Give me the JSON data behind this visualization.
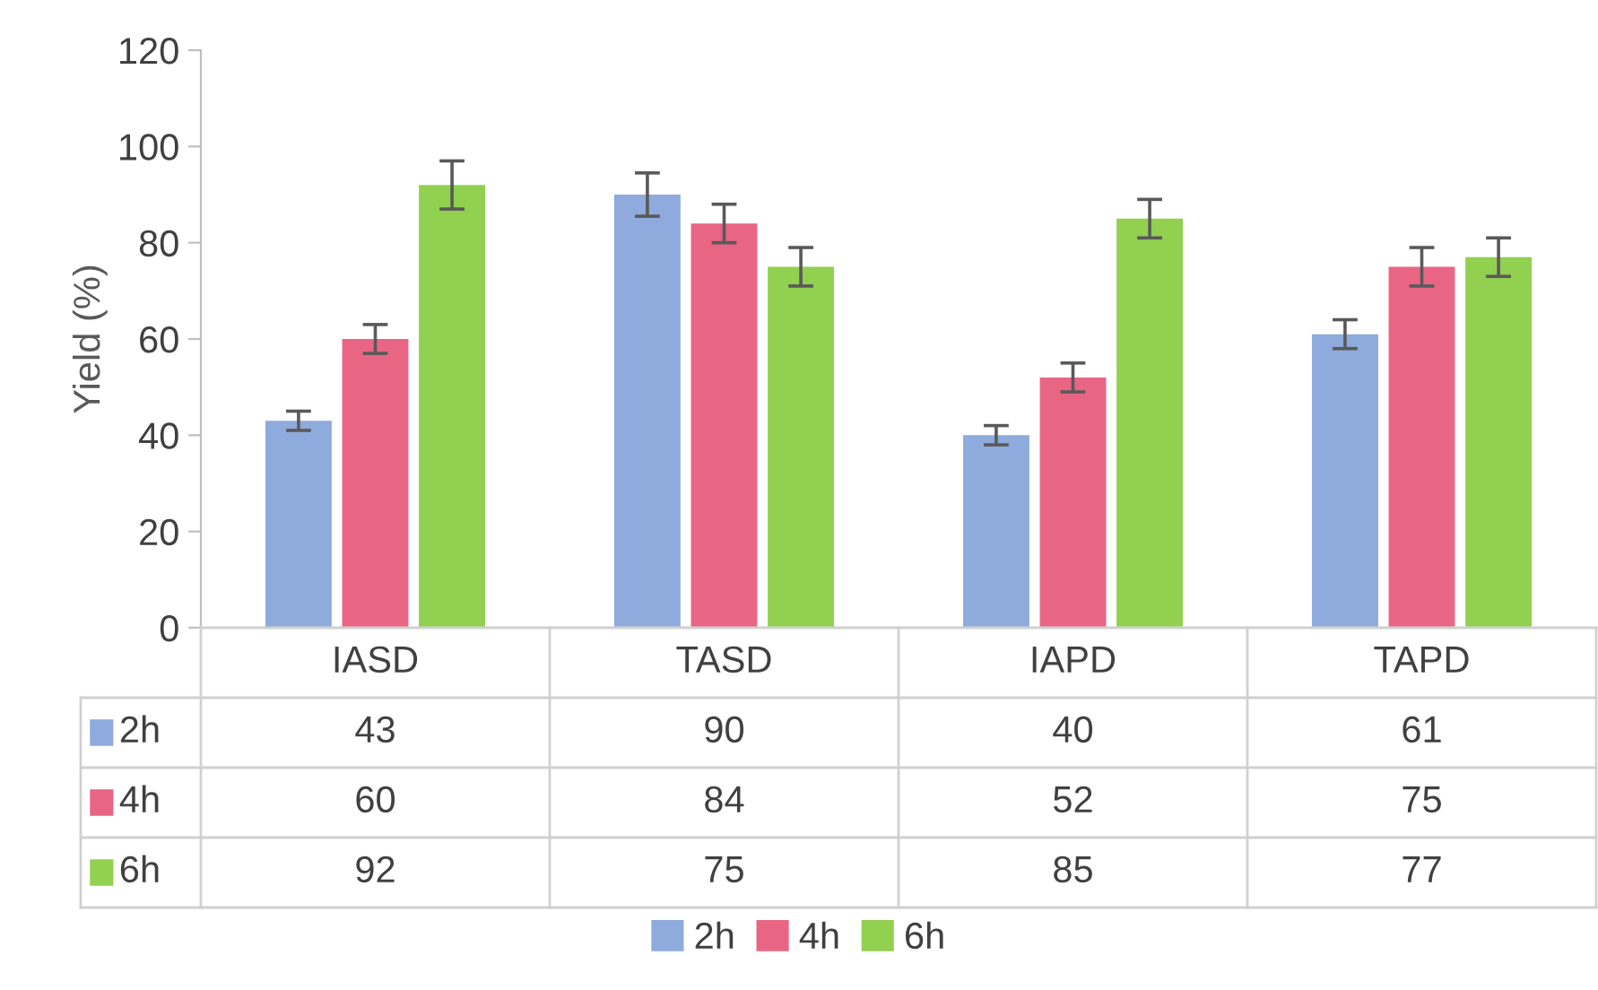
{
  "chart_data": {
    "type": "bar",
    "ylabel": "Yield (%)",
    "categories": [
      "IASD",
      "TASD",
      "IAPD",
      "TAPD"
    ],
    "series": [
      {
        "name": "2h",
        "color": "#8faadc",
        "values": [
          43,
          90,
          40,
          61
        ],
        "errors": [
          2,
          4.5,
          2,
          3
        ]
      },
      {
        "name": "4h",
        "color": "#e96584",
        "values": [
          60,
          84,
          52,
          75
        ],
        "errors": [
          3,
          4,
          3,
          4
        ]
      },
      {
        "name": "6h",
        "color": "#92d050",
        "values": [
          92,
          75,
          85,
          77
        ],
        "errors": [
          5,
          4,
          4,
          4
        ]
      }
    ],
    "ylim": [
      0,
      120
    ],
    "yticks": [
      0,
      20,
      40,
      60,
      80,
      100,
      120
    ],
    "grid": false,
    "legend": "bottom",
    "data_labels": true
  }
}
